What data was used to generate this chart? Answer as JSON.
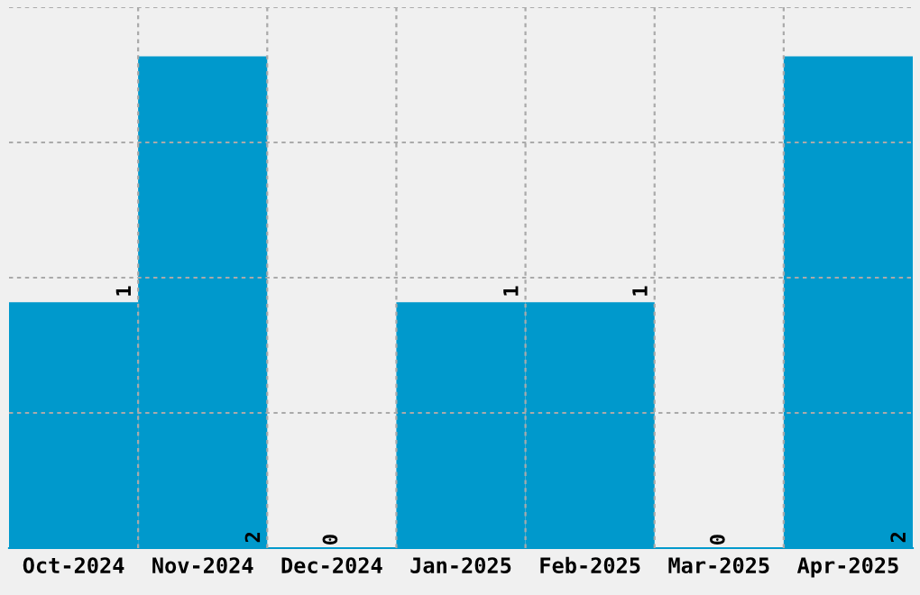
{
  "chart_data": {
    "type": "bar",
    "categories": [
      "Oct-2024",
      "Nov-2024",
      "Dec-2024",
      "Jan-2025",
      "Feb-2025",
      "Mar-2025",
      "Apr-2025"
    ],
    "values": [
      1,
      2,
      0,
      1,
      1,
      0,
      2
    ],
    "color": "#0099cc",
    "ylim": [
      0,
      2.2
    ],
    "yticks": [
      {
        "value": 0.55,
        "label": null
      },
      {
        "value": 1.1,
        "label": null
      },
      {
        "value": 1.65,
        "label": null
      },
      {
        "value": 2.2,
        "label": null
      }
    ],
    "tick_labels": "x",
    "grid": true,
    "data_labels": true
  }
}
